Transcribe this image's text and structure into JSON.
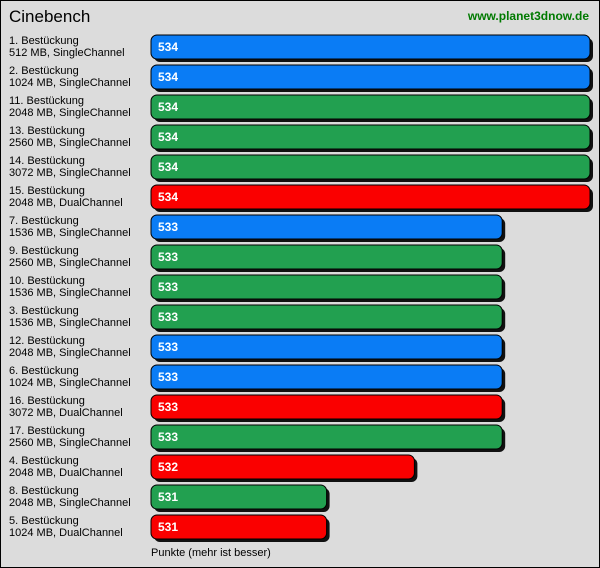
{
  "chart_data": {
    "type": "bar",
    "orientation": "horizontal",
    "title": "Cinebench",
    "source": "www.planet3dnow.de",
    "xlabel": "Punkte (mehr ist besser)",
    "xlim": [
      529,
      534
    ],
    "colors": {
      "blue": "#0a7cf5",
      "green": "#22a050",
      "red": "#fa0000"
    },
    "bars": [
      {
        "line1": "1. Bestückung",
        "line2": "512 MB,  SingleChannel",
        "value": 534,
        "color": "blue"
      },
      {
        "line1": "2. Bestückung",
        "line2": "1024 MB, SingleChannel",
        "value": 534,
        "color": "blue"
      },
      {
        "line1": "11. Bestückung",
        "line2": "2048 MB, SingleChannel",
        "value": 534,
        "color": "green"
      },
      {
        "line1": "13. Bestückung",
        "line2": "2560 MB, SingleChannel",
        "value": 534,
        "color": "green"
      },
      {
        "line1": "14. Bestückung",
        "line2": "3072 MB, SingleChannel",
        "value": 534,
        "color": "green"
      },
      {
        "line1": "15. Bestückung",
        "line2": "2048 MB, DualChannel",
        "value": 534,
        "color": "red"
      },
      {
        "line1": "7. Bestückung",
        "line2": "1536 MB, SingleChannel",
        "value": 533,
        "color": "blue"
      },
      {
        "line1": "9. Bestückung",
        "line2": "2560 MB, SingleChannel",
        "value": 533,
        "color": "green"
      },
      {
        "line1": "10. Bestückung",
        "line2": "1536 MB, SingleChannel",
        "value": 533,
        "color": "green"
      },
      {
        "line1": "3. Bestückung",
        "line2": "1536 MB, SingleChannel",
        "value": 533,
        "color": "green"
      },
      {
        "line1": "12. Bestückung",
        "line2": "2048 MB, SingleChannel",
        "value": 533,
        "color": "blue"
      },
      {
        "line1": "6. Bestückung",
        "line2": "1024 MB, SingleChannel",
        "value": 533,
        "color": "blue"
      },
      {
        "line1": "16. Bestückung",
        "line2": "3072 MB, DualChannel",
        "value": 533,
        "color": "red"
      },
      {
        "line1": "17. Bestückung",
        "line2": "2560 MB, SingleChannel",
        "value": 533,
        "color": "green"
      },
      {
        "line1": "4. Bestückung",
        "line2": "2048 MB, DualChannel",
        "value": 532,
        "color": "red"
      },
      {
        "line1": "8. Bestückung",
        "line2": "2048 MB, SingleChannel",
        "value": 531,
        "color": "green"
      },
      {
        "line1": "5. Bestückung",
        "line2": "1024 MB, DualChannel",
        "value": 531,
        "color": "red"
      }
    ]
  }
}
